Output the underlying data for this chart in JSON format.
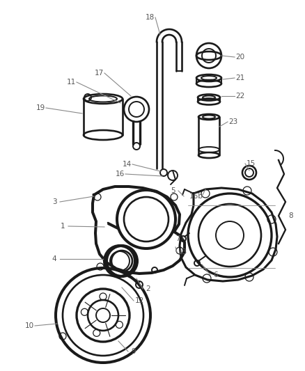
{
  "bg_color": "#ffffff",
  "figsize": [
    4.38,
    5.33
  ],
  "dpi": 100,
  "part_color": "#1a1a1a",
  "label_color": "#555555",
  "leader_color": "#888888",
  "label_fontsize": 7.5
}
